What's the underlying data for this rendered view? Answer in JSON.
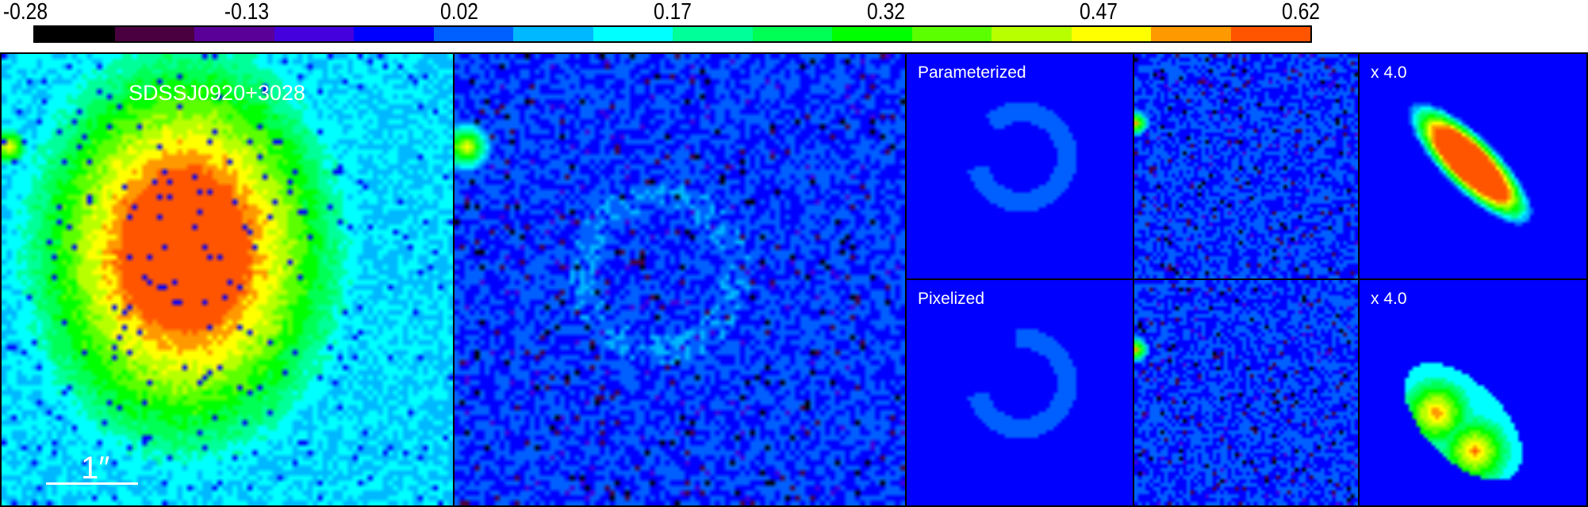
{
  "colorbar": {
    "tick_labels": [
      "-0.28",
      "-0.13",
      "0.02",
      "0.17",
      "0.32",
      "0.47",
      "0.62"
    ],
    "range": [
      -0.28,
      0.62
    ],
    "colors": [
      "#000000",
      "#4a0040",
      "#5a0099",
      "#4400dd",
      "#0000ff",
      "#0060ff",
      "#00b8ff",
      "#00ffff",
      "#00ff99",
      "#00ff55",
      "#00ff00",
      "#5cff00",
      "#b8ff00",
      "#ffff00",
      "#ff9900",
      "#ff5500"
    ]
  },
  "panels": {
    "data": {
      "title": "SDSSJ0920+3028",
      "scale_label": "1″"
    },
    "residual_main": {},
    "source_param": {
      "label": "Parameterized"
    },
    "residual_param": {},
    "source_param_zoom": {
      "label": "x 4.0"
    },
    "source_pix": {
      "label": "Pixelized"
    },
    "residual_pix": {},
    "source_pix_zoom": {
      "label": "x 4.0"
    }
  }
}
